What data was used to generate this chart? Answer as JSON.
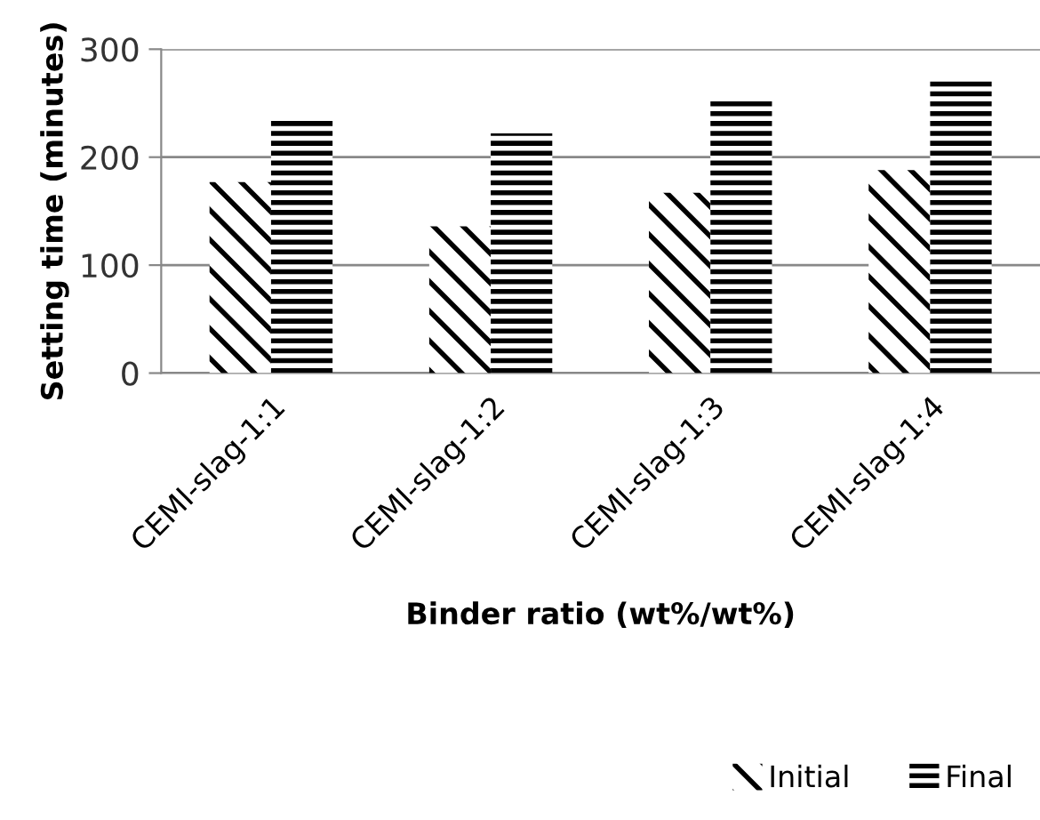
{
  "chart_data": {
    "type": "bar",
    "categories": [
      "CEMI-slag-1:1",
      "CEMI-slag-1:2",
      "CEMI-slag-1:3",
      "CEMI-slag-1:4"
    ],
    "series": [
      {
        "name": "Initial",
        "color": "#000000",
        "values": [
          177,
          136,
          167,
          188
        ]
      },
      {
        "name": "Final",
        "color": "#000000",
        "values": [
          236,
          222,
          252,
          272
        ]
      }
    ],
    "xlabel": "Binder ratio (wt%/wt%)",
    "ylabel": "Setting time (minutes)",
    "ylim": [
      0,
      300
    ],
    "yticks": [
      0,
      100,
      200,
      300
    ],
    "grid": "y",
    "legend": "bottom right"
  }
}
